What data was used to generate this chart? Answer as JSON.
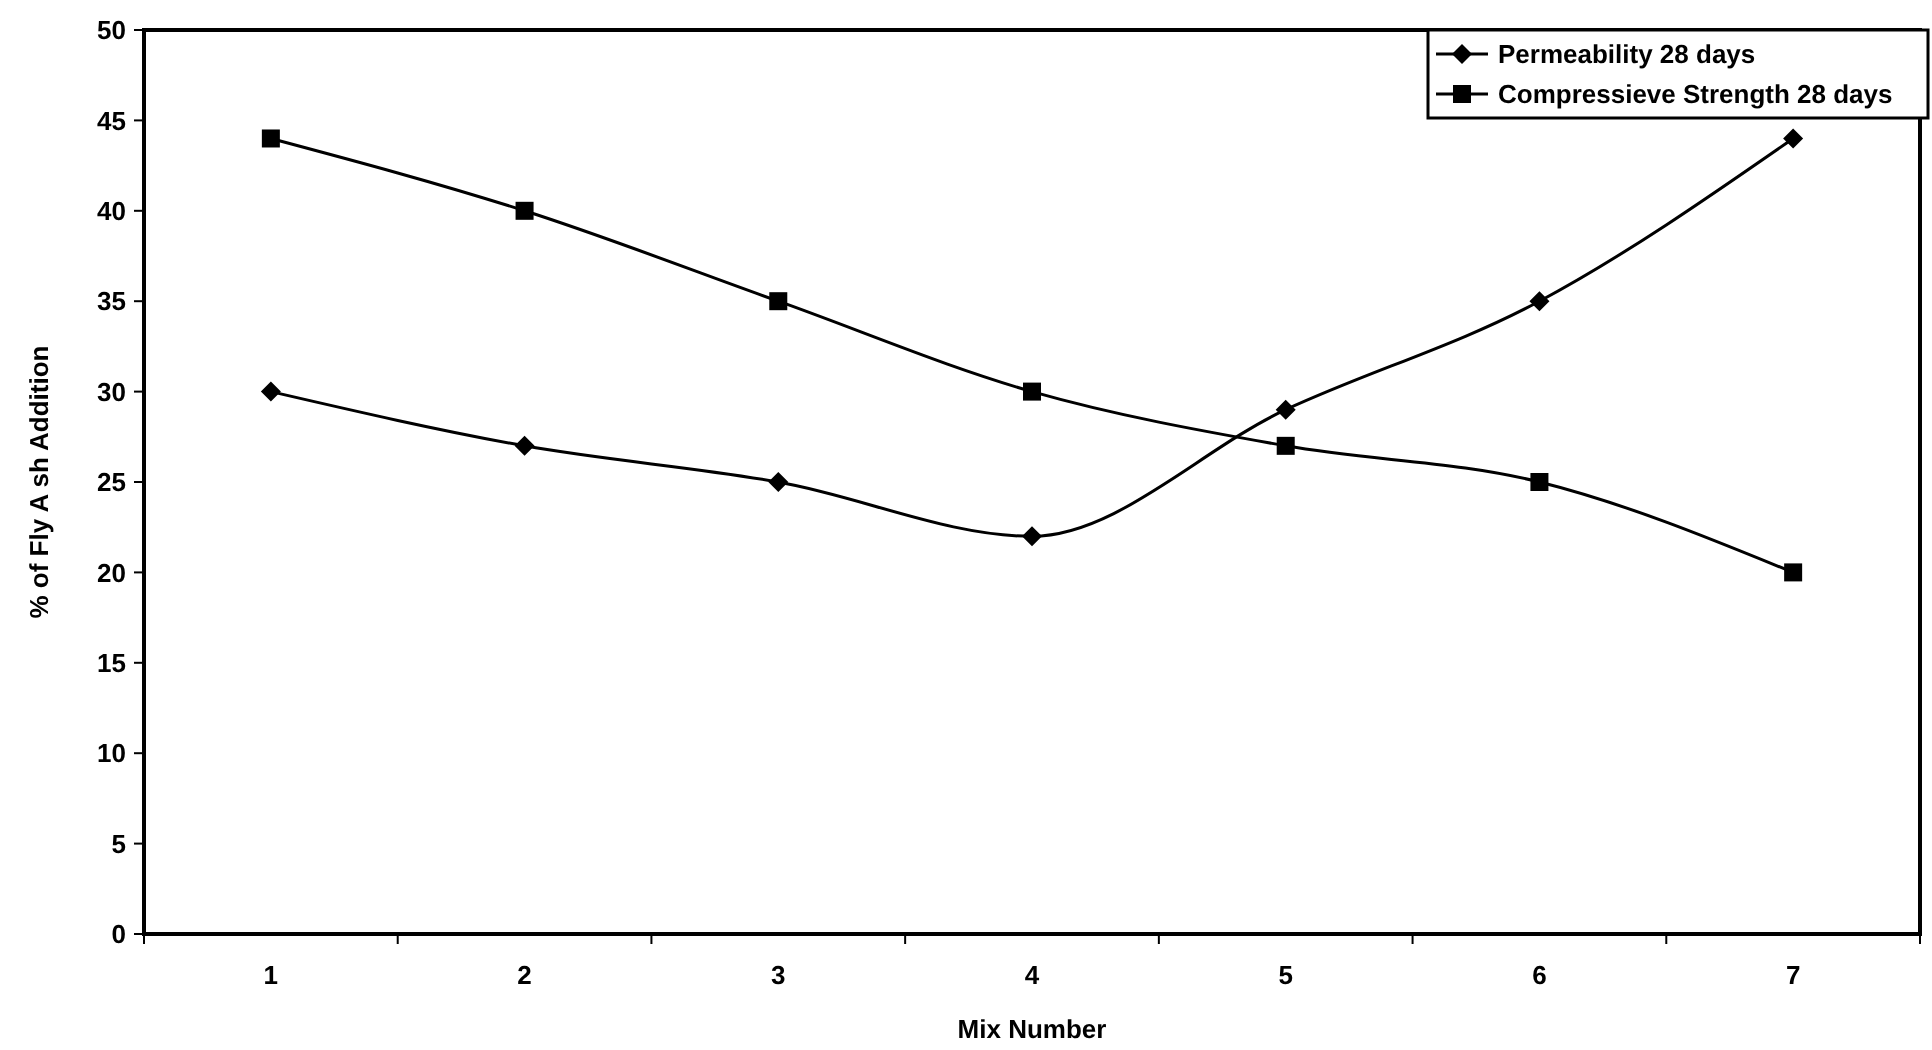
{
  "chart_data": {
    "type": "line",
    "xlabel": "Mix Number",
    "ylabel": "% of Fly A sh Addition",
    "categories": [
      "1",
      "2",
      "3",
      "4",
      "5",
      "6",
      "7"
    ],
    "series": [
      {
        "name": "Permeability 28 days",
        "color": "#000000",
        "marker": "diamond",
        "values": [
          30,
          27,
          25,
          22,
          29,
          35,
          44
        ]
      },
      {
        "name": "Compressieve Strength 28 days",
        "color": "#000000",
        "marker": "square",
        "values": [
          44,
          40,
          35,
          30,
          27,
          25,
          20
        ]
      }
    ],
    "ylim": [
      0,
      50
    ],
    "yticks": [
      0,
      5,
      10,
      15,
      20,
      25,
      30,
      35,
      40,
      45,
      50
    ],
    "grid": false,
    "legend": "top right",
    "line_style": "solid"
  }
}
